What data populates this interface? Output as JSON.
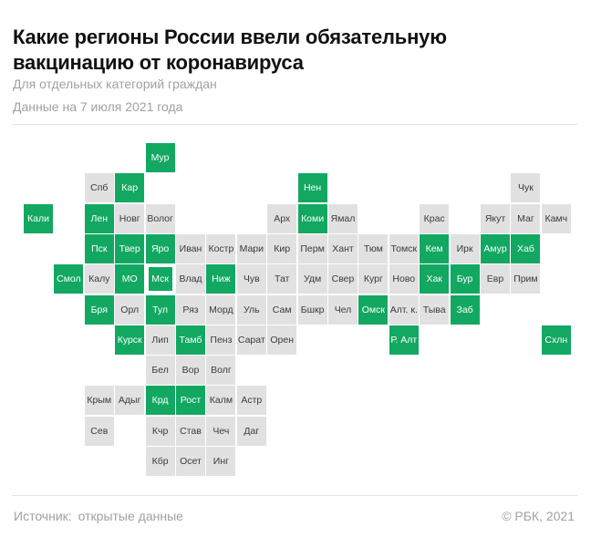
{
  "page": {
    "title": "Какие регионы России ввели обязательную вакцинацию от коронавируса",
    "subtitle_line1": "Для отдельных категорий граждан",
    "subtitle_line2": "Данные на 7 июля 2021 года"
  },
  "footer": {
    "source_label": "Источник:",
    "source_value": "открытые данные",
    "copyright": "© РБК, 2021"
  },
  "chart_data": {
    "type": "heatmap",
    "subtype": "tile_cartogram_russia_regions",
    "title": "Какие регионы России ввели обязательную вакцинацию от коронавируса",
    "legend_position": "none",
    "colors": {
      "active": "#12A862",
      "inactive": "#E1E1E1",
      "active_text": "#FFFFFF",
      "inactive_text": "#3B3B3B"
    },
    "grid": {
      "columns": 18,
      "rows": 11
    },
    "tiles": [
      {
        "label": "Мур",
        "col": 4,
        "row": 0,
        "active": true
      },
      {
        "label": "Спб",
        "col": 2,
        "row": 1,
        "active": false
      },
      {
        "label": "Кар",
        "col": 3,
        "row": 1,
        "active": true
      },
      {
        "label": "Нен",
        "col": 9,
        "row": 1,
        "active": true
      },
      {
        "label": "Чук",
        "col": 16,
        "row": 1,
        "active": false
      },
      {
        "label": "Кали",
        "col": 0,
        "row": 2,
        "active": true
      },
      {
        "label": "Лен",
        "col": 2,
        "row": 2,
        "active": true
      },
      {
        "label": "Новг",
        "col": 3,
        "row": 2,
        "active": false
      },
      {
        "label": "Волог",
        "col": 4,
        "row": 2,
        "active": false
      },
      {
        "label": "Арх",
        "col": 8,
        "row": 2,
        "active": false
      },
      {
        "label": "Коми",
        "col": 9,
        "row": 2,
        "active": true
      },
      {
        "label": "Ямал",
        "col": 10,
        "row": 2,
        "active": false
      },
      {
        "label": "Крас",
        "col": 13,
        "row": 2,
        "active": false
      },
      {
        "label": "Якут",
        "col": 15,
        "row": 2,
        "active": false
      },
      {
        "label": "Маг",
        "col": 16,
        "row": 2,
        "active": false
      },
      {
        "label": "Камч",
        "col": 17,
        "row": 2,
        "active": false
      },
      {
        "label": "Пск",
        "col": 2,
        "row": 3,
        "active": true
      },
      {
        "label": "Твер",
        "col": 3,
        "row": 3,
        "active": true
      },
      {
        "label": "Яро",
        "col": 4,
        "row": 3,
        "active": true
      },
      {
        "label": "Иван",
        "col": 5,
        "row": 3,
        "active": false
      },
      {
        "label": "Костр",
        "col": 6,
        "row": 3,
        "active": false
      },
      {
        "label": "Мари",
        "col": 7,
        "row": 3,
        "active": false
      },
      {
        "label": "Кир",
        "col": 8,
        "row": 3,
        "active": false
      },
      {
        "label": "Перм",
        "col": 9,
        "row": 3,
        "active": false
      },
      {
        "label": "Хант",
        "col": 10,
        "row": 3,
        "active": false
      },
      {
        "label": "Тюм",
        "col": 11,
        "row": 3,
        "active": false
      },
      {
        "label": "Томск",
        "col": 12,
        "row": 3,
        "active": false
      },
      {
        "label": "Кем",
        "col": 13,
        "row": 3,
        "active": true
      },
      {
        "label": "Ирк",
        "col": 14,
        "row": 3,
        "active": false
      },
      {
        "label": "Амур",
        "col": 15,
        "row": 3,
        "active": true
      },
      {
        "label": "Хаб",
        "col": 16,
        "row": 3,
        "active": true
      },
      {
        "label": "Смол",
        "col": 1,
        "row": 4,
        "active": true
      },
      {
        "label": "Калу",
        "col": 2,
        "row": 4,
        "active": false
      },
      {
        "label": "МО",
        "col": 3,
        "row": 4,
        "active": true
      },
      {
        "label": "Мск",
        "col": 4,
        "row": 4,
        "active": true,
        "outlined": true
      },
      {
        "label": "Влад",
        "col": 5,
        "row": 4,
        "active": false
      },
      {
        "label": "Ниж",
        "col": 6,
        "row": 4,
        "active": true
      },
      {
        "label": "Чув",
        "col": 7,
        "row": 4,
        "active": false
      },
      {
        "label": "Тат",
        "col": 8,
        "row": 4,
        "active": false
      },
      {
        "label": "Удм",
        "col": 9,
        "row": 4,
        "active": false
      },
      {
        "label": "Свер",
        "col": 10,
        "row": 4,
        "active": false
      },
      {
        "label": "Кург",
        "col": 11,
        "row": 4,
        "active": false
      },
      {
        "label": "Ново",
        "col": 12,
        "row": 4,
        "active": false
      },
      {
        "label": "Хак",
        "col": 13,
        "row": 4,
        "active": true
      },
      {
        "label": "Бур",
        "col": 14,
        "row": 4,
        "active": true
      },
      {
        "label": "Евр",
        "col": 15,
        "row": 4,
        "active": false
      },
      {
        "label": "Прим",
        "col": 16,
        "row": 4,
        "active": false
      },
      {
        "label": "Бря",
        "col": 2,
        "row": 5,
        "active": true
      },
      {
        "label": "Орл",
        "col": 3,
        "row": 5,
        "active": false
      },
      {
        "label": "Тул",
        "col": 4,
        "row": 5,
        "active": true
      },
      {
        "label": "Ряз",
        "col": 5,
        "row": 5,
        "active": false
      },
      {
        "label": "Морд",
        "col": 6,
        "row": 5,
        "active": false
      },
      {
        "label": "Уль",
        "col": 7,
        "row": 5,
        "active": false
      },
      {
        "label": "Сам",
        "col": 8,
        "row": 5,
        "active": false
      },
      {
        "label": "Бшкр",
        "col": 9,
        "row": 5,
        "active": false
      },
      {
        "label": "Чел",
        "col": 10,
        "row": 5,
        "active": false
      },
      {
        "label": "Омск",
        "col": 11,
        "row": 5,
        "active": true
      },
      {
        "label": "Алт. к.",
        "col": 12,
        "row": 5,
        "active": false
      },
      {
        "label": "Тыва",
        "col": 13,
        "row": 5,
        "active": false
      },
      {
        "label": "Заб",
        "col": 14,
        "row": 5,
        "active": true
      },
      {
        "label": "Курск",
        "col": 3,
        "row": 6,
        "active": true
      },
      {
        "label": "Лип",
        "col": 4,
        "row": 6,
        "active": false
      },
      {
        "label": "Тамб",
        "col": 5,
        "row": 6,
        "active": true
      },
      {
        "label": "Пенз",
        "col": 6,
        "row": 6,
        "active": false
      },
      {
        "label": "Сарат",
        "col": 7,
        "row": 6,
        "active": false
      },
      {
        "label": "Орен",
        "col": 8,
        "row": 6,
        "active": false
      },
      {
        "label": "Р. Алт",
        "col": 12,
        "row": 6,
        "active": true
      },
      {
        "label": "Схлн",
        "col": 17,
        "row": 6,
        "active": true
      },
      {
        "label": "Бел",
        "col": 4,
        "row": 7,
        "active": false
      },
      {
        "label": "Вор",
        "col": 5,
        "row": 7,
        "active": false
      },
      {
        "label": "Волг",
        "col": 6,
        "row": 7,
        "active": false
      },
      {
        "label": "Крым",
        "col": 2,
        "row": 8,
        "active": false
      },
      {
        "label": "Адыг",
        "col": 3,
        "row": 8,
        "active": false
      },
      {
        "label": "Крд",
        "col": 4,
        "row": 8,
        "active": true
      },
      {
        "label": "Рост",
        "col": 5,
        "row": 8,
        "active": true
      },
      {
        "label": "Калм",
        "col": 6,
        "row": 8,
        "active": false
      },
      {
        "label": "Астр",
        "col": 7,
        "row": 8,
        "active": false
      },
      {
        "label": "Сев",
        "col": 2,
        "row": 9,
        "active": false
      },
      {
        "label": "Кчр",
        "col": 4,
        "row": 9,
        "active": false
      },
      {
        "label": "Став",
        "col": 5,
        "row": 9,
        "active": false
      },
      {
        "label": "Чеч",
        "col": 6,
        "row": 9,
        "active": false
      },
      {
        "label": "Даг",
        "col": 7,
        "row": 9,
        "active": false
      },
      {
        "label": "Кбр",
        "col": 4,
        "row": 10,
        "active": false
      },
      {
        "label": "Осет",
        "col": 5,
        "row": 10,
        "active": false
      },
      {
        "label": "Инг",
        "col": 6,
        "row": 10,
        "active": false
      }
    ]
  }
}
